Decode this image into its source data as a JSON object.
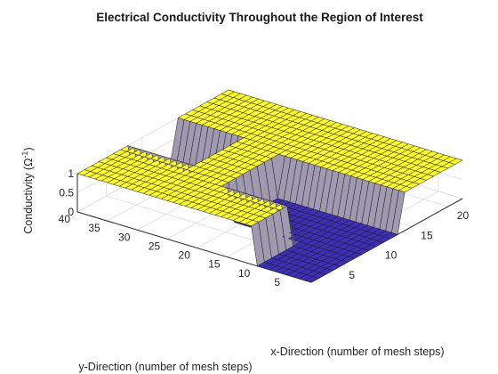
{
  "chart_data": {
    "type": "surface",
    "title": "Electrical Conductivity Throughout the Region of Interest",
    "xlabel": "x-Direction (number of mesh steps)",
    "ylabel": "y-Direction (number of mesh steps)",
    "zlabel_main": "Conductivity (Ω",
    "zlabel_sup": "-1",
    "zlabel_close": ")",
    "xlim": [
      1,
      22
    ],
    "ylim": [
      1,
      40
    ],
    "zlim": [
      0,
      1
    ],
    "x_ticks": [
      "5",
      "10",
      "15",
      "20"
    ],
    "y_ticks": [
      "5",
      "10",
      "15",
      "20",
      "25",
      "30",
      "35",
      "40"
    ],
    "z_ticks": [
      "0",
      "0.5",
      "1"
    ],
    "grid": true,
    "mesh": {
      "nx": 22,
      "ny": 40
    },
    "values_description": "Conductivity is 1 everywhere except three rectangular regions where it is 0",
    "low_regions": [
      {
        "x": [
          1,
          8
        ],
        "y": [
          1,
          10
        ],
        "z": 0
      },
      {
        "x": [
          7,
          13
        ],
        "y": [
          1,
          21
        ],
        "z": 0
      },
      {
        "x": [
          9,
          14
        ],
        "y": [
          30,
          40
        ],
        "z": 0
      }
    ],
    "colors": {
      "high": "#ffff30",
      "low": "#3d2fb8",
      "edge": "#1a1a1a",
      "axis": "#262626",
      "grid": "#dcdcdc"
    }
  }
}
